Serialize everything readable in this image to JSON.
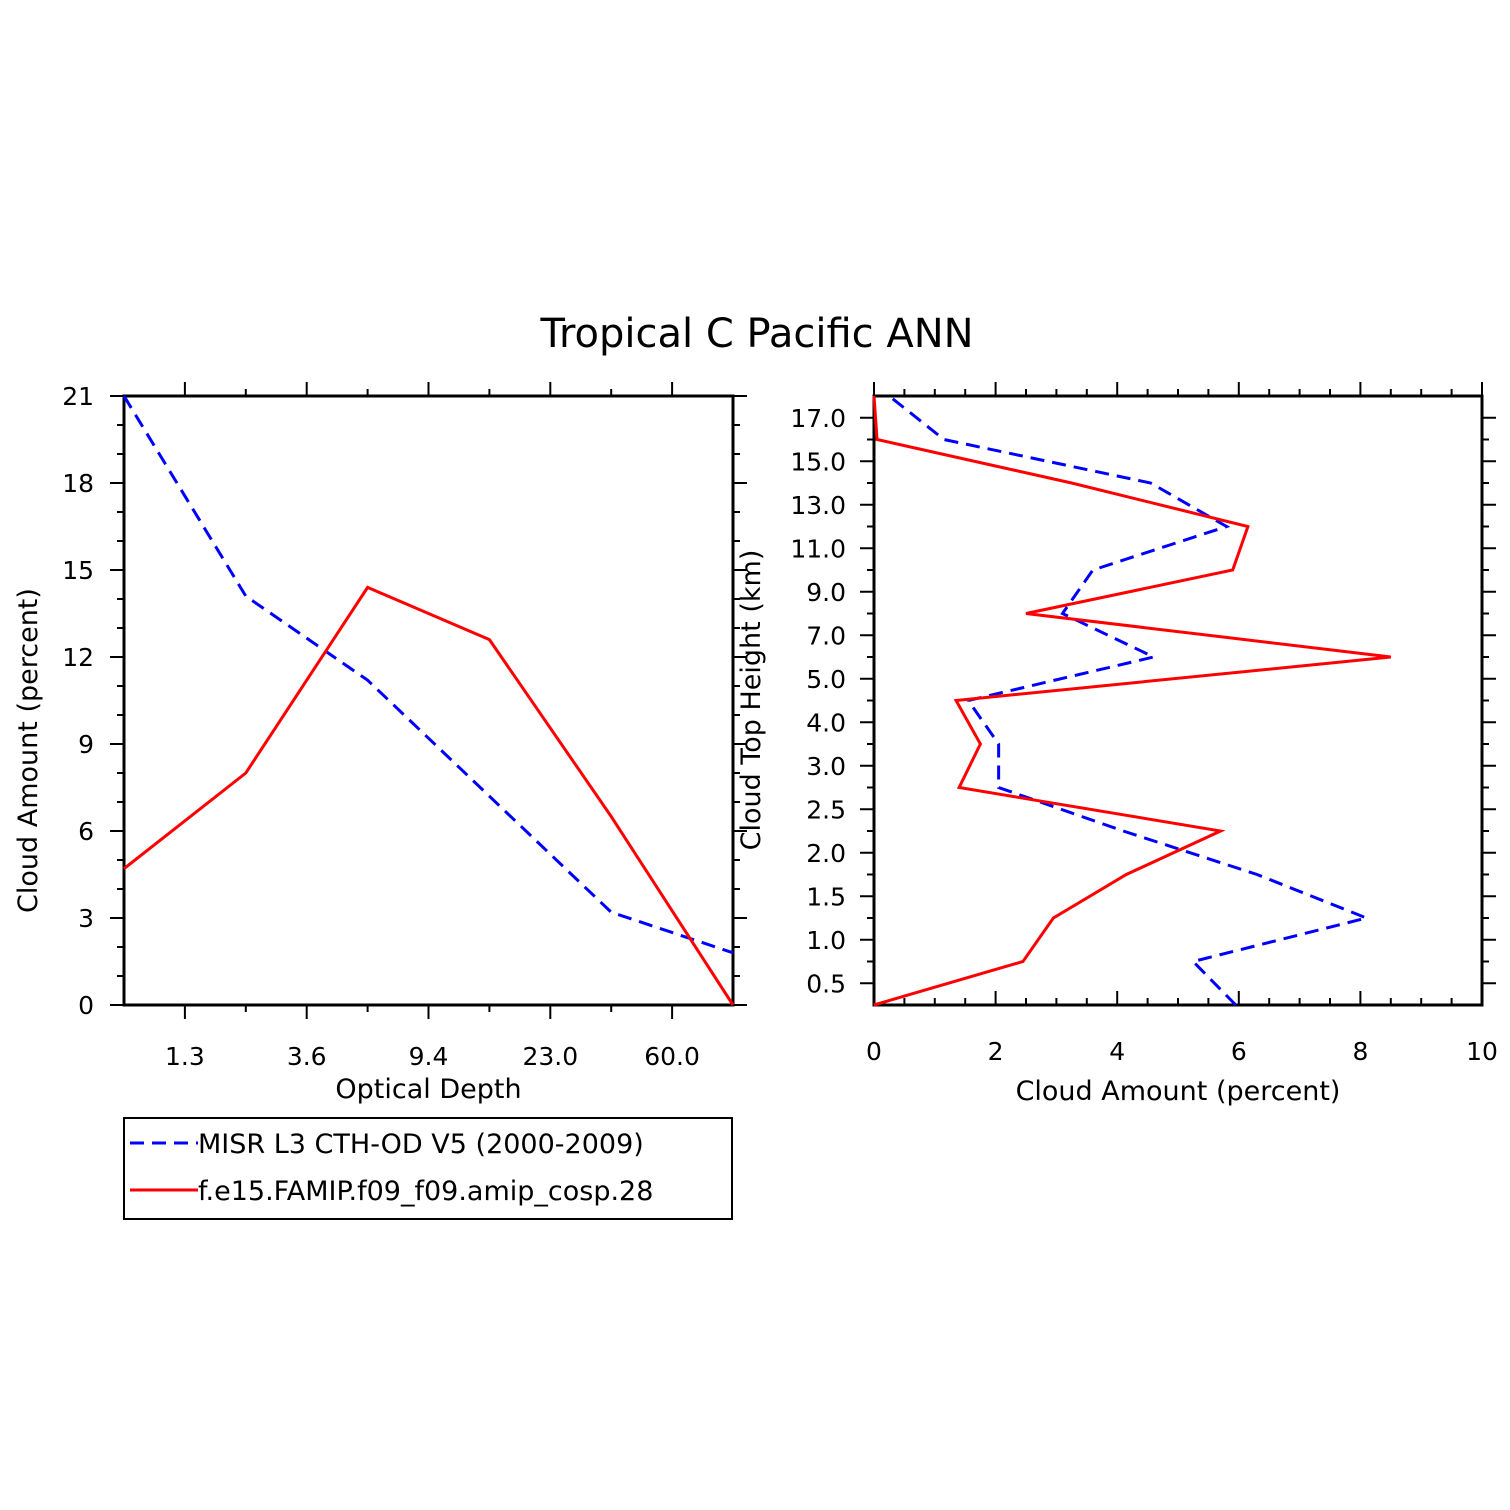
{
  "title": "Tropical C Pacific ANN",
  "legend": {
    "entries": [
      {
        "label": "MISR L3 CTH-OD V5 (2000-2009)",
        "color": "#0000ff",
        "dash": true
      },
      {
        "label": "f.e15.FAMIP.f09_f09.amip_cosp.28",
        "color": "#ff0000",
        "dash": false
      }
    ]
  },
  "chart_data": [
    {
      "type": "line",
      "title": "",
      "xlabel": "Optical Depth",
      "ylabel": "Cloud Amount (percent)",
      "x_categories": [
        "",
        "1.3",
        "",
        "3.6",
        "",
        "9.4",
        "",
        "23.0",
        "",
        "60.0",
        ""
      ],
      "x_tick_labels": [
        "1.3",
        "3.6",
        "9.4",
        "23.0",
        "60.0"
      ],
      "y_ticks": [
        0,
        3,
        6,
        9,
        12,
        15,
        18,
        21
      ],
      "ylim": [
        0,
        21
      ],
      "series": [
        {
          "name": "MISR L3 CTH-OD V5 (2000-2009)",
          "color": "#0000ff",
          "dash": true,
          "x_index": [
            0,
            2,
            4,
            8,
            10
          ],
          "values": [
            21.0,
            14.1,
            11.2,
            3.2,
            1.8
          ]
        },
        {
          "name": "f.e15.FAMIP.f09_f09.amip_cosp.28",
          "color": "#ff0000",
          "dash": false,
          "x_index": [
            0,
            2,
            4,
            6,
            8,
            10
          ],
          "values": [
            4.7,
            8.0,
            14.4,
            12.6,
            6.5,
            0.0
          ]
        }
      ]
    },
    {
      "type": "line",
      "title": "",
      "xlabel": "Cloud Amount (percent)",
      "ylabel": "Cloud Top Height (km)",
      "x_ticks": [
        0,
        2,
        4,
        6,
        8,
        10
      ],
      "xlim": [
        0,
        10
      ],
      "y_categories": [
        "",
        "0.5",
        "",
        "1.0",
        "",
        "1.5",
        "",
        "2.0",
        "",
        "2.5",
        "",
        "3.0",
        "",
        "4.0",
        "",
        "5.0",
        "",
        "7.0",
        "",
        "9.0",
        "",
        "11.0",
        "",
        "13.0",
        "",
        "15.0",
        "",
        "17.0",
        ""
      ],
      "y_tick_labels": [
        "0.5",
        "1.0",
        "1.5",
        "2.0",
        "2.5",
        "3.0",
        "4.0",
        "5.0",
        "7.0",
        "9.0",
        "11.0",
        "13.0",
        "15.0",
        "17.0"
      ],
      "series": [
        {
          "name": "MISR L3 CTH-OD V5 (2000-2009)",
          "color": "#0000ff",
          "dash": true,
          "y_index": [
            0,
            2,
            4,
            6,
            8,
            10,
            12,
            14,
            16,
            18,
            20,
            22,
            24,
            26,
            28
          ],
          "values": [
            5.95,
            5.25,
            8.1,
            6.3,
            4.1,
            2.05,
            2.05,
            1.55,
            4.6,
            3.1,
            3.6,
            5.8,
            4.55,
            1.15,
            0.25
          ]
        },
        {
          "name": "f.e15.FAMIP.f09_f09.amip_cosp.28",
          "color": "#ff0000",
          "dash": false,
          "y_index": [
            0,
            2,
            4,
            6,
            8,
            10,
            12,
            14,
            16,
            18,
            20,
            22,
            24,
            26,
            28
          ],
          "values": [
            0.0,
            2.45,
            2.95,
            4.15,
            5.7,
            1.4,
            1.75,
            1.35,
            8.5,
            2.5,
            5.9,
            6.15,
            3.25,
            0.05,
            0.0
          ]
        }
      ]
    }
  ]
}
